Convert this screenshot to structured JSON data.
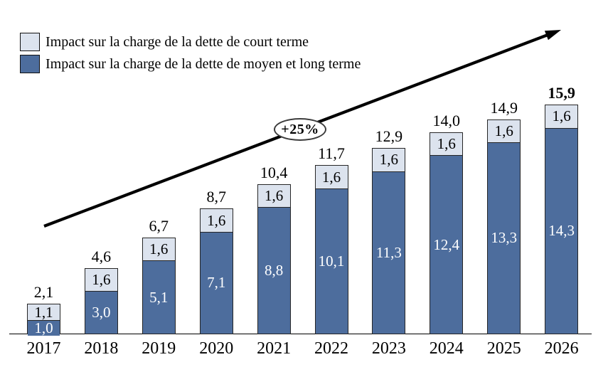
{
  "legend": {
    "items": [
      {
        "label": "Impact sur la charge de la dette de court terme",
        "color": "#dce3ee"
      },
      {
        "label": "Impact sur la charge de la dette de moyen et long terme",
        "color": "#4d6d9d"
      }
    ]
  },
  "annotation": {
    "growth_label": "+25%"
  },
  "chart_data": {
    "type": "bar",
    "stacked": true,
    "title": "",
    "xlabel": "",
    "ylabel": "",
    "ylim": [
      0,
      16
    ],
    "grid": false,
    "legend_position": "top-left",
    "categories": [
      "2017",
      "2018",
      "2019",
      "2020",
      "2021",
      "2022",
      "2023",
      "2024",
      "2025",
      "2026"
    ],
    "series": [
      {
        "name": "Impact sur la charge de la dette de moyen et long terme",
        "color": "#4d6d9d",
        "values": [
          1.0,
          3.0,
          5.1,
          7.1,
          8.8,
          10.1,
          11.3,
          12.4,
          13.3,
          14.3
        ],
        "labels": [
          "1,0",
          "3,0",
          "5,1",
          "7,1",
          "8,8",
          "10,1",
          "11,3",
          "12,4",
          "13,3",
          "14,3"
        ]
      },
      {
        "name": "Impact sur la charge de la dette de court terme",
        "color": "#dce3ee",
        "values": [
          1.1,
          1.6,
          1.6,
          1.6,
          1.6,
          1.6,
          1.6,
          1.6,
          1.6,
          1.6
        ],
        "labels": [
          "1,1",
          "1,6",
          "1,6",
          "1,6",
          "1,6",
          "1,6",
          "1,6",
          "1,6",
          "1,6",
          "1,6"
        ]
      }
    ],
    "totals": [
      "2,1",
      "4,6",
      "6,7",
      "8,7",
      "10,4",
      "11,7",
      "12,9",
      "14,0",
      "14,9",
      "15,9"
    ],
    "total_values": [
      2.1,
      4.6,
      6.7,
      8.7,
      10.4,
      11.7,
      12.9,
      14.0,
      14.9,
      15.9
    ],
    "totals_bold": [
      false,
      false,
      false,
      false,
      false,
      false,
      false,
      false,
      false,
      true
    ],
    "trend_annotation": "+25%"
  },
  "colors": {
    "bar_border": "#262626",
    "axis": "#000000",
    "arrow": "#000000",
    "dark_segment_text": "#ffffff",
    "light_segment_text": "#000000"
  }
}
